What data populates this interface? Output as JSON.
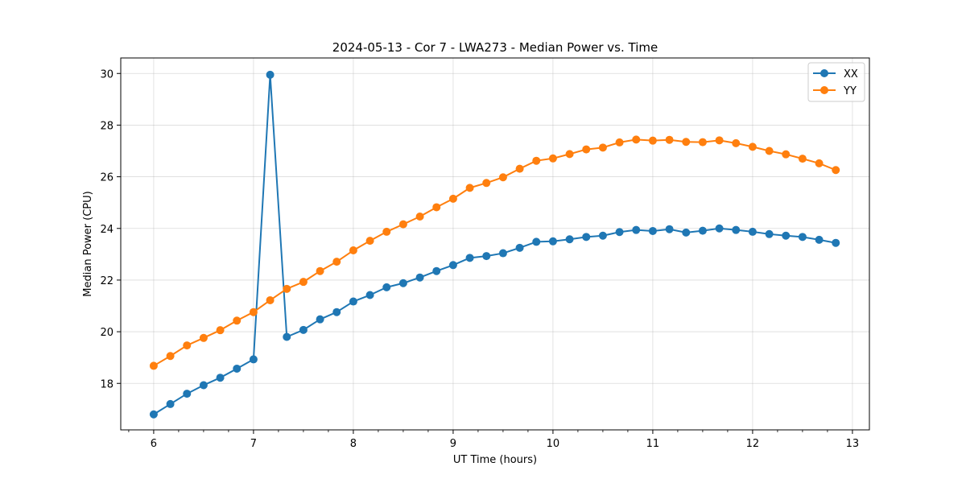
{
  "chart_data": {
    "type": "line",
    "title": "2024-05-13 - Cor 7 - LWA273 - Median Power vs. Time",
    "xlabel": "UT Time (hours)",
    "ylabel": "Median Power (CPU)",
    "xlim": [
      5.67,
      13.17
    ],
    "ylim": [
      16.2,
      30.6
    ],
    "x_major_ticks": [
      6,
      7,
      8,
      9,
      10,
      11,
      12,
      13
    ],
    "x_major_tick_labels": [
      "6",
      "7",
      "8",
      "9",
      "10",
      "11",
      "12",
      "13"
    ],
    "x_minor_step": 0.25,
    "y_major_ticks": [
      18,
      20,
      22,
      24,
      26,
      28,
      30
    ],
    "y_major_tick_labels": [
      "18",
      "20",
      "22",
      "24",
      "26",
      "28",
      "30"
    ],
    "grid": true,
    "legend_position": "top-right",
    "x": [
      6.0,
      6.1667,
      6.3333,
      6.5,
      6.6667,
      6.8333,
      7.0,
      7.1667,
      7.3333,
      7.5,
      7.6667,
      7.8333,
      8.0,
      8.1667,
      8.3333,
      8.5,
      8.6667,
      8.8333,
      9.0,
      9.1667,
      9.3333,
      9.5,
      9.6667,
      9.8333,
      10.0,
      10.1667,
      10.3333,
      10.5,
      10.6667,
      10.8333,
      11.0,
      11.1667,
      11.3333,
      11.5,
      11.6667,
      11.8333,
      12.0,
      12.1667,
      12.3333,
      12.5,
      12.6667,
      12.8333
    ],
    "series": [
      {
        "name": "XX",
        "color": "#1f77b4",
        "marker": "circle",
        "values": [
          16.8,
          17.2,
          17.6,
          17.93,
          18.22,
          18.57,
          18.93,
          29.95,
          19.8,
          20.07,
          20.48,
          20.76,
          21.17,
          21.42,
          21.72,
          21.88,
          22.1,
          22.35,
          22.58,
          22.86,
          22.93,
          23.04,
          23.25,
          23.48,
          23.5,
          23.58,
          23.67,
          23.72,
          23.86,
          23.94,
          23.9,
          23.97,
          23.84,
          23.91,
          24.0,
          23.94,
          23.87,
          23.78,
          23.72,
          23.67,
          23.56,
          23.44
        ]
      },
      {
        "name": "YY",
        "color": "#ff7f0e",
        "marker": "circle",
        "values": [
          18.68,
          19.06,
          19.47,
          19.76,
          20.06,
          20.43,
          20.76,
          21.22,
          21.66,
          21.93,
          22.35,
          22.71,
          23.15,
          23.52,
          23.87,
          24.16,
          24.46,
          24.82,
          25.15,
          25.57,
          25.76,
          25.98,
          26.31,
          26.62,
          26.71,
          26.88,
          27.06,
          27.13,
          27.33,
          27.44,
          27.4,
          27.43,
          27.35,
          27.34,
          27.41,
          27.3,
          27.16,
          27.0,
          26.87,
          26.7,
          26.52,
          26.26
        ]
      }
    ]
  }
}
